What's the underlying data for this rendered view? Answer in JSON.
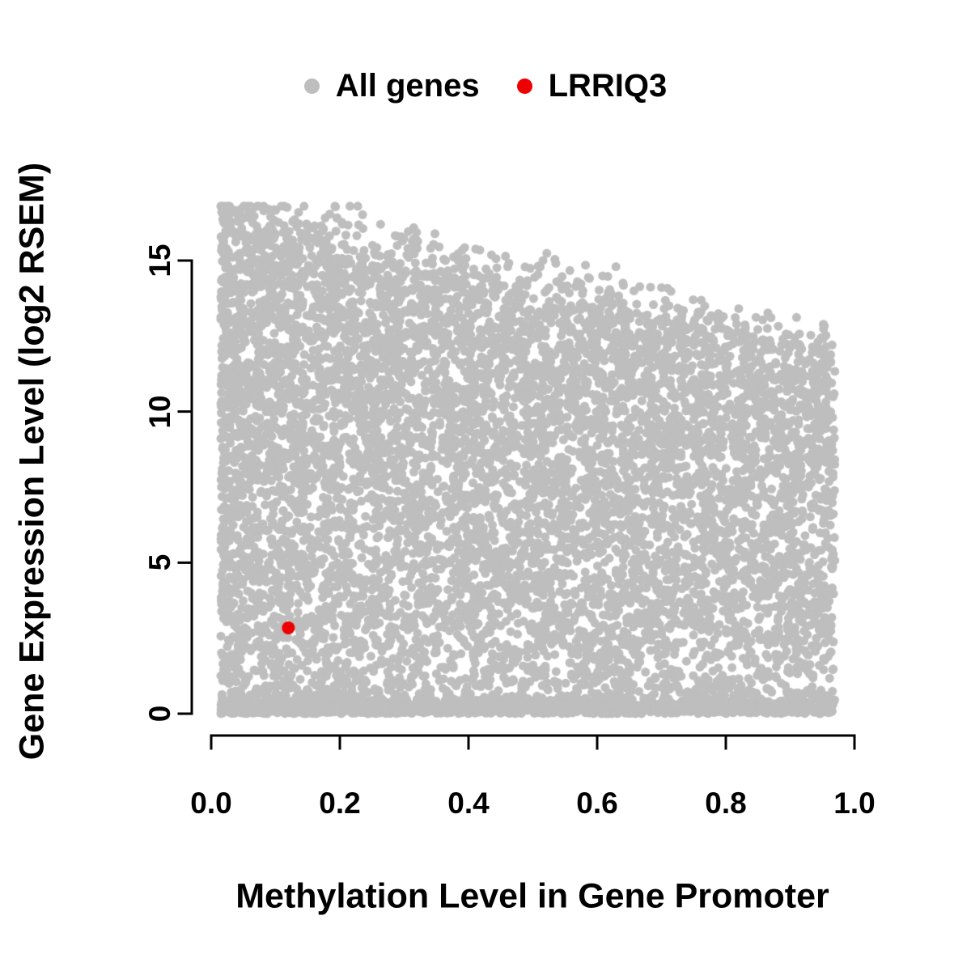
{
  "chart_data": {
    "type": "scatter",
    "title": "",
    "xlabel": "Methylation Level in Gene Promoter",
    "ylabel": "Gene Expression Level (log2 RSEM)",
    "xlim": [
      0,
      1
    ],
    "ylim": [
      0,
      17
    ],
    "x_ticks": [
      0.0,
      0.2,
      0.4,
      0.6,
      0.8,
      1.0
    ],
    "x_tick_labels": [
      "0.0",
      "0.2",
      "0.4",
      "0.6",
      "0.8",
      "1.0"
    ],
    "y_ticks": [
      0,
      5,
      10,
      15
    ],
    "y_tick_labels": [
      "0",
      "5",
      "10",
      "15"
    ],
    "grid": false,
    "legend_position": "top-center",
    "background_color": "#ffffff",
    "axis_color": "#000000",
    "series": [
      {
        "name": "All genes",
        "color": "#bebebe",
        "marker_radius_px": 5.5,
        "n_points": 9500,
        "seed": 42,
        "x_range": [
          0.015,
          0.97
        ],
        "y_range": [
          0,
          16.8
        ],
        "distribution": {
          "x_bias_exponent": 1.2,
          "bottom_strip_fraction": 0.15,
          "bottom_strip_sigma": 0.3,
          "vertical_bias_exponent": 0.82,
          "upper_envelope_intercept": 16.9,
          "upper_envelope_slope": -5.0,
          "upper_envelope_noise_sigma": 0.6
        },
        "note": "dense cloud of all genes; expression upper bound decreases as promoter methylation increases"
      },
      {
        "name": "LRRIQ3",
        "color": "#ee0000",
        "marker_radius_px": 8,
        "points": [
          [
            0.12,
            2.84
          ]
        ]
      }
    ]
  },
  "legend": {
    "items": [
      {
        "label": "All genes",
        "color": "#bebebe"
      },
      {
        "label": "LRRIQ3",
        "color": "#ee0000"
      }
    ]
  }
}
